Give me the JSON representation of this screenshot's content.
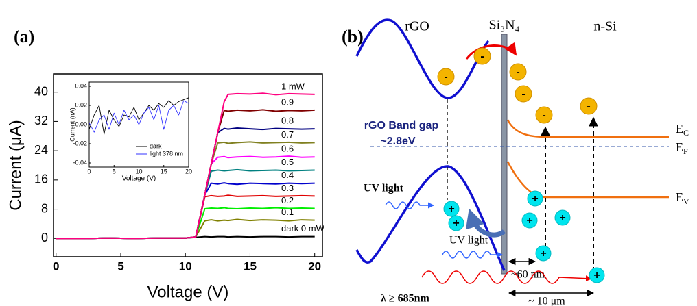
{
  "chart_data": [
    {
      "type": "line",
      "panel_label": "(a)",
      "x_label": "Voltage (V)",
      "y_label": "Current (μA)",
      "xlim": [
        -0.2,
        20.6
      ],
      "ylim": [
        -5,
        45
      ],
      "xticks": [
        0,
        5,
        10,
        15,
        20
      ],
      "yticks": [
        0,
        8,
        16,
        24,
        32,
        40
      ],
      "x": [
        0,
        2,
        4,
        6,
        8,
        10,
        10.8,
        11.5,
        12,
        12.5,
        13,
        13.3,
        14,
        15,
        16,
        17,
        18,
        19,
        20
      ],
      "series": [
        {
          "name": "dark 0 mW",
          "color": "#000000",
          "values": [
            0,
            0,
            0.1,
            0,
            0.1,
            0.1,
            0.3,
            0.5,
            0.4,
            0.5,
            0.5,
            0.4,
            0.5,
            0.4,
            0.5,
            0.5,
            0.4,
            0.5,
            0.5
          ]
        },
        {
          "name": "0.1",
          "color": "#808000",
          "values": [
            0,
            0,
            0.1,
            0,
            0.1,
            0.1,
            0.4,
            4.8,
            5.1,
            4.8,
            5,
            4.9,
            5.2,
            4.9,
            5.1,
            5,
            4.8,
            5.1,
            5
          ]
        },
        {
          "name": "0.2",
          "color": "#00ee00",
          "values": [
            0,
            0,
            0.1,
            0,
            0.1,
            0.1,
            0.4,
            8.1,
            8.3,
            8.2,
            8.4,
            8.2,
            8.1,
            8.3,
            8.2,
            8.4,
            8.2,
            8.3,
            8.2
          ]
        },
        {
          "name": "0.3",
          "color": "#e00000",
          "values": [
            0,
            0,
            0.1,
            0,
            0.1,
            0.1,
            0.4,
            11.4,
            11.7,
            11.5,
            11.6,
            11.8,
            11.5,
            11.6,
            11.7,
            11.5,
            11.6,
            11.7,
            11.6
          ]
        },
        {
          "name": "0.4",
          "color": "#0000cc",
          "values": [
            0,
            0,
            0.1,
            0,
            0.1,
            0.1,
            0.4,
            11.9,
            15.1,
            14.9,
            15.2,
            15,
            14.8,
            15.1,
            15,
            14.9,
            15.1,
            15,
            15.1
          ]
        },
        {
          "name": "0.5",
          "color": "#008080",
          "values": [
            0,
            0,
            0.1,
            0,
            0.1,
            0.1,
            0.4,
            11.9,
            18.4,
            18.7,
            18.5,
            18.6,
            18.8,
            18.5,
            18.6,
            18.7,
            18.5,
            18.6,
            18.7
          ]
        },
        {
          "name": "0.6",
          "color": "#ff00ff",
          "values": [
            0,
            0,
            0.1,
            0,
            0.1,
            0.1,
            0.4,
            11.9,
            20.4,
            22.2,
            22.4,
            22.1,
            22.3,
            22.4,
            22.2,
            22.3,
            22.5,
            22.2,
            22.3
          ]
        },
        {
          "name": "0.7",
          "color": "#808020",
          "values": [
            0,
            0,
            0.1,
            0,
            0.1,
            0.1,
            0.4,
            11.9,
            20.4,
            26.1,
            26.3,
            26,
            26.2,
            26.4,
            26.1,
            26.2,
            26.3,
            26.1,
            26.2
          ]
        },
        {
          "name": "0.8",
          "color": "#000080",
          "values": [
            0,
            0,
            0.1,
            0,
            0.1,
            0.1,
            0.4,
            11.9,
            20.4,
            28.9,
            30.1,
            29.9,
            30.2,
            30,
            29.8,
            30.1,
            30,
            29.9,
            30
          ]
        },
        {
          "name": "0.9",
          "color": "#800000",
          "values": [
            0,
            0,
            0.1,
            0,
            0.1,
            0.1,
            0.4,
            11.9,
            20.4,
            28.9,
            35,
            34.8,
            35.1,
            34.9,
            35.2,
            34.8,
            35,
            34.9,
            35.1
          ]
        },
        {
          "name": "1 mW",
          "color": "#ff0080",
          "values": [
            0,
            0,
            0.1,
            0,
            0.1,
            0.1,
            0.4,
            11.9,
            20.4,
            28.9,
            37.4,
            39.4,
            39.6,
            39.5,
            39.7,
            39.3,
            39.6,
            39.5,
            39.4
          ]
        }
      ]
    },
    {
      "type": "line",
      "x_label": "Voltage (V)",
      "y_label": "Current (nA)",
      "xlim": [
        0,
        20
      ],
      "ylim": [
        -0.04,
        0.04
      ],
      "xticks": [
        0,
        5,
        10,
        15,
        20
      ],
      "yticks": [
        0.04,
        0.02,
        {
          "value": 0,
          "label": "0.00"
        },
        -0.02,
        -0.04
      ],
      "x": [
        0,
        1,
        2,
        3,
        4,
        5,
        6,
        7,
        8,
        9,
        10,
        11,
        12,
        13,
        14,
        15,
        16,
        17,
        18,
        19,
        20
      ],
      "series": [
        {
          "name": "dark",
          "color": "#000000",
          "values": [
            -0.005,
            0.01,
            0.02,
            -0.01,
            0.015,
            0.005,
            -0.002,
            0.01,
            0.008,
            0.018,
            0.005,
            0.012,
            0.02,
            0.015,
            0.022,
            0.018,
            0.025,
            0.02,
            0.024,
            0.026,
            0.028
          ]
        },
        {
          "name": "light 378 nm",
          "color": "#3333ff",
          "values": [
            0.002,
            -0.008,
            0.005,
            0.01,
            -0.005,
            0.012,
            0,
            0.015,
            0.005,
            0.01,
            0,
            0.012,
            0.018,
            0.005,
            0.02,
            -0.005,
            0.015,
            0.02,
            0.01,
            0.025,
            0.022
          ]
        }
      ]
    }
  ],
  "diagram": {
    "panel_label": "(b)",
    "regions": [
      "rGO",
      "Si₃N₄",
      "n-Si"
    ],
    "band_gap_label": "rGO Band gap",
    "band_gap_value": "~2.8eV",
    "levels": [
      {
        "main": "E",
        "sub": "C"
      },
      {
        "main": "E",
        "sub": "F"
      },
      {
        "main": "E",
        "sub": "V"
      }
    ],
    "uv_light_labels": [
      "UV light",
      "UV light"
    ],
    "barrier_width": "~60 nm",
    "wavelength": "λ ≥ 685nm",
    "diffusion_length": "~ 10 μm",
    "electron_sign": "-",
    "hole_sign": "+"
  }
}
